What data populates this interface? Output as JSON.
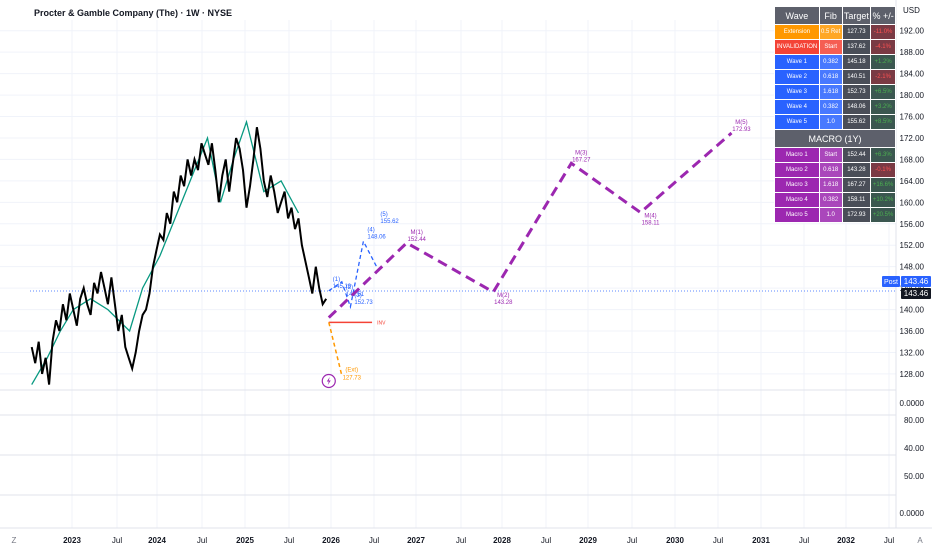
{
  "header": {
    "title": "Procter & Gamble Company (The) · 1W · NYSE",
    "currency": "USD"
  },
  "price_axis": {
    "ticks": [
      "192.00",
      "188.00",
      "184.00",
      "180.00",
      "176.00",
      "172.00",
      "168.00",
      "164.00",
      "160.00",
      "156.00",
      "152.00",
      "148.00",
      "144.00",
      "140.00",
      "136.00",
      "132.00",
      "128.00"
    ],
    "post_label": "Post",
    "post_value": "143.46",
    "last_value": "143.46"
  },
  "indicator_axes": [
    {
      "ticks": [
        "0.0000"
      ]
    },
    {
      "ticks": [
        "80.00",
        "40.00"
      ]
    },
    {
      "ticks": [
        "50.00"
      ]
    },
    {
      "ticks": [
        "0.0000"
      ]
    }
  ],
  "time_axis": {
    "labels": [
      "2023",
      "Jul",
      "2024",
      "Jul",
      "2025",
      "Jul",
      "2026",
      "Jul",
      "2027",
      "Jul",
      "2028",
      "Jul",
      "2029",
      "Jul",
      "2030",
      "Jul",
      "2031",
      "Jul",
      "2032",
      "Jul"
    ],
    "corner_left": "Z",
    "corner_right": "A"
  },
  "wave_table": {
    "headers": [
      "Wave",
      "Fib",
      "Target",
      "% +/-"
    ],
    "rows": [
      {
        "wave": "Extension",
        "fib": "0.5 Ret",
        "target": "127.73",
        "pct": "-11.0%",
        "color": "#ff9800",
        "pct_kind": "neg"
      },
      {
        "wave": "INVALIDATION",
        "fib": "Start",
        "target": "137.62",
        "pct": "-4.1%",
        "color": "#f44336",
        "pct_kind": "neg"
      },
      {
        "wave": "Wave 1",
        "fib": "0.382",
        "target": "145.18",
        "pct": "+1.2%",
        "color": "#2962ff",
        "pct_kind": "pos"
      },
      {
        "wave": "Wave 2",
        "fib": "0.618",
        "target": "140.51",
        "pct": "-2.1%",
        "color": "#2962ff",
        "pct_kind": "neg"
      },
      {
        "wave": "Wave 3",
        "fib": "1.618",
        "target": "152.73",
        "pct": "+6.5%",
        "color": "#2962ff",
        "pct_kind": "pos"
      },
      {
        "wave": "Wave 4",
        "fib": "0.382",
        "target": "148.06",
        "pct": "+3.2%",
        "color": "#2962ff",
        "pct_kind": "pos"
      },
      {
        "wave": "Wave 5",
        "fib": "1.0",
        "target": "155.62",
        "pct": "+8.5%",
        "color": "#2962ff",
        "pct_kind": "pos"
      }
    ],
    "macro_title": "MACRO (1Y)",
    "macro_rows": [
      {
        "wave": "Macro 1",
        "fib": "Start",
        "target": "152.44",
        "pct": "+6.3%",
        "color": "#9c27b0",
        "pct_kind": "pos"
      },
      {
        "wave": "Macro 2",
        "fib": "0.618",
        "target": "143.28",
        "pct": "-0.1%",
        "color": "#9c27b0",
        "pct_kind": "neg"
      },
      {
        "wave": "Macro 3",
        "fib": "1.618",
        "target": "167.27",
        "pct": "+16.6%",
        "color": "#9c27b0",
        "pct_kind": "pos"
      },
      {
        "wave": "Macro 4",
        "fib": "0.382",
        "target": "158.11",
        "pct": "+10.2%",
        "color": "#9c27b0",
        "pct_kind": "pos"
      },
      {
        "wave": "Macro 5",
        "fib": "1.0",
        "target": "172.93",
        "pct": "+20.5%",
        "color": "#9c27b0",
        "pct_kind": "pos"
      }
    ]
  },
  "chart_data": {
    "type": "line",
    "title": "Procter & Gamble Company (The) · 1W · NYSE",
    "ylim": [
      125,
      194
    ],
    "xlim": [
      2022.6,
      2032.6
    ],
    "y_ticks": [
      192,
      188,
      184,
      180,
      176,
      172,
      168,
      164,
      160,
      156,
      152,
      148,
      144,
      140,
      136,
      132,
      128
    ],
    "current_price": 143.46,
    "colors": {
      "price": "#000000",
      "ma": "#089981",
      "wave": "#2962ff",
      "macro": "#9c27b0",
      "extension": "#ff9800",
      "invalidation": "#f44336",
      "post": "#2962ff"
    },
    "series": [
      {
        "name": "",
        "kind": "price",
        "x": [
          2022.62,
          2022.66,
          2022.7,
          2022.74,
          2022.78,
          2022.82,
          2022.86,
          2022.9,
          2022.94,
          2022.98,
          2023.02,
          2023.06,
          2023.1,
          2023.14,
          2023.18,
          2023.22,
          2023.26,
          2023.3,
          2023.34,
          2023.38,
          2023.42,
          2023.46,
          2023.5,
          2023.54,
          2023.58,
          2023.62,
          2023.66,
          2023.7,
          2023.74,
          2023.78,
          2023.82,
          2023.86,
          2023.9,
          2023.94,
          2023.98,
          2024.02,
          2024.06,
          2024.1,
          2024.14,
          2024.18,
          2024.22,
          2024.26,
          2024.3,
          2024.34,
          2024.38,
          2024.42,
          2024.46,
          2024.5,
          2024.54,
          2024.58,
          2024.62,
          2024.66,
          2024.7,
          2024.74,
          2024.78,
          2024.82,
          2024.86,
          2024.9,
          2024.94,
          2024.98,
          2025.02,
          2025.06,
          2025.1,
          2025.14,
          2025.18,
          2025.22,
          2025.26,
          2025.3,
          2025.34,
          2025.38,
          2025.42,
          2025.46,
          2025.5,
          2025.54,
          2025.58,
          2025.62,
          2025.66,
          2025.7,
          2025.74,
          2025.78,
          2025.82,
          2025.86,
          2025.9,
          2025.94,
          2025.98,
          2026.02
        ],
        "y": [
          133,
          130,
          134,
          128,
          131,
          126,
          134,
          138,
          136,
          141,
          138,
          143,
          140,
          137,
          142,
          144,
          141,
          139,
          145,
          143,
          147,
          144,
          141,
          146,
          141,
          136,
          139,
          133,
          131,
          129,
          132,
          136,
          139,
          140,
          143,
          148,
          151,
          154,
          153,
          158,
          156,
          162,
          160,
          165,
          163,
          168,
          165,
          168,
          166,
          171,
          169,
          167,
          171,
          166,
          160,
          165,
          168,
          162,
          167,
          172,
          170,
          166,
          159,
          163,
          168,
          174,
          170,
          164,
          161,
          165,
          162,
          158,
          160,
          162,
          157,
          159,
          155,
          157,
          152,
          149,
          146,
          143,
          148,
          144,
          141,
          142
        ]
      },
      {
        "name": "",
        "kind": "ma",
        "x": [
          2022.62,
          2022.8,
          2022.95,
          2023.1,
          2023.3,
          2023.5,
          2023.75,
          2023.9,
          2024.1,
          2024.3,
          2024.5,
          2024.65,
          2024.8,
          2024.95,
          2025.1,
          2025.3,
          2025.5,
          2025.7
        ],
        "y": [
          126,
          131,
          136,
          140,
          142,
          140,
          136,
          144,
          150,
          158,
          166,
          172,
          160,
          168,
          175,
          162,
          164,
          158
        ]
      },
      {
        "name": "",
        "kind": "wave",
        "x": [
          2026.05,
          2026.2,
          2026.3,
          2026.45,
          2026.6
        ],
        "y": [
          143.5,
          145.18,
          140.51,
          152.73,
          148.06
        ],
        "labels": [
          "(1)",
          "(2)",
          "(3)",
          "(4)",
          "(5)"
        ],
        "label_values": [
          "145.18",
          "140.51",
          "152.73",
          "148.06",
          "155.62"
        ]
      },
      {
        "name": "",
        "kind": "macro",
        "x": [
          2026.05,
          2026.95,
          2027.95,
          2028.85,
          2029.65,
          2030.7
        ],
        "y": [
          138.5,
          152.44,
          143.28,
          167.27,
          158.11,
          172.93
        ],
        "labels": [
          "",
          "M(1)",
          "M(2)",
          "M(3)",
          "M(4)",
          "M(5)"
        ],
        "label_values": [
          "",
          "152.44",
          "143.28",
          "167.27",
          "158.11",
          "172.93"
        ]
      },
      {
        "name": "",
        "kind": "extension",
        "x": [
          2026.05,
          2026.2
        ],
        "y": [
          137.62,
          127.73
        ],
        "label": "(Ext)",
        "label_value": "127.73"
      }
    ],
    "annotations": [
      {
        "kind": "invalidation-line",
        "x0": 2026.05,
        "x1": 2026.55,
        "y": 137.62,
        "text": "INV"
      }
    ]
  }
}
